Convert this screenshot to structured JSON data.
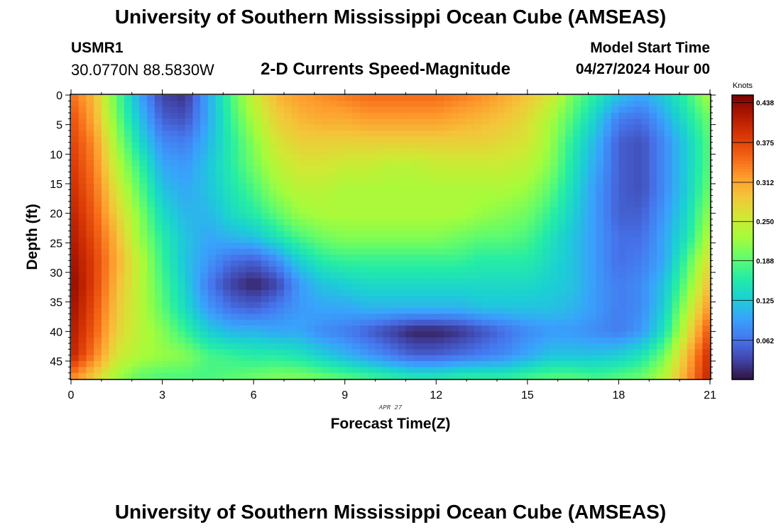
{
  "header": {
    "title": "University of Southern Mississippi Ocean Cube (AMSEAS)",
    "station": "USMR1",
    "coords": "30.0770N  88.5830W",
    "model_start_label": "Model Start Time",
    "model_start_value": "04/27/2024 Hour 00"
  },
  "footer": {
    "title": "University of Southern Mississippi Ocean Cube (AMSEAS)"
  },
  "chart_data": {
    "type": "heatmap",
    "title": "2-D Currents Speed-Magnitude",
    "xlabel": "Forecast Time(Z)",
    "ylabel": "Depth (ft)",
    "date_label": "APR 27",
    "xlim": [
      0,
      21
    ],
    "ylim": [
      0,
      48
    ],
    "xticks": [
      "0",
      "3",
      "6",
      "9",
      "12",
      "15",
      "18",
      "21"
    ],
    "yticks": [
      "0",
      "5",
      "10",
      "15",
      "20",
      "25",
      "30",
      "35",
      "40",
      "45"
    ],
    "colorbar": {
      "label": "Knots",
      "min": 0.0,
      "max": 0.45,
      "ticks": [
        "0.438",
        "0.375",
        "0.312",
        "0.250",
        "0.188",
        "0.125",
        "0.062"
      ]
    },
    "colors": [
      "#30123b",
      "#4145ab",
      "#4675ed",
      "#39a2fc",
      "#1bcfd4",
      "#24eca6",
      "#61fc6c",
      "#a4fc3b",
      "#d1e834",
      "#f3c63a",
      "#fe9b2d",
      "#f36315",
      "#d93806",
      "#b11901",
      "#7a0402"
    ],
    "time_hours": [
      0,
      0.75,
      1.5,
      2.25,
      3,
      3.75,
      4.5,
      5.25,
      6,
      6.75,
      7.5,
      8.25,
      9,
      9.75,
      10.5,
      11.25,
      12,
      12.75,
      13.5,
      14.25,
      15,
      15.75,
      16.5,
      17.25,
      18,
      18.75,
      19.5,
      20.25,
      21
    ],
    "depth_ft": [
      0,
      4,
      8,
      12,
      16,
      20,
      24,
      28,
      32,
      36,
      40,
      44,
      48
    ],
    "speed_knots": [
      [
        0.35,
        0.3,
        0.19,
        0.1,
        0.03,
        0.02,
        0.1,
        0.18,
        0.25,
        0.3,
        0.32,
        0.33,
        0.34,
        0.35,
        0.35,
        0.35,
        0.35,
        0.34,
        0.33,
        0.31,
        0.29,
        0.26,
        0.2,
        0.16,
        0.12,
        0.1,
        0.13,
        0.17,
        0.23
      ],
      [
        0.37,
        0.31,
        0.2,
        0.12,
        0.05,
        0.04,
        0.1,
        0.17,
        0.23,
        0.28,
        0.3,
        0.31,
        0.31,
        0.32,
        0.32,
        0.32,
        0.32,
        0.31,
        0.3,
        0.29,
        0.27,
        0.23,
        0.18,
        0.13,
        0.07,
        0.06,
        0.1,
        0.15,
        0.2
      ],
      [
        0.38,
        0.33,
        0.22,
        0.14,
        0.08,
        0.07,
        0.11,
        0.16,
        0.21,
        0.26,
        0.28,
        0.28,
        0.28,
        0.28,
        0.28,
        0.28,
        0.28,
        0.28,
        0.28,
        0.27,
        0.26,
        0.22,
        0.16,
        0.11,
        0.05,
        0.04,
        0.08,
        0.13,
        0.19
      ],
      [
        0.39,
        0.34,
        0.24,
        0.17,
        0.1,
        0.09,
        0.12,
        0.16,
        0.2,
        0.24,
        0.26,
        0.26,
        0.25,
        0.25,
        0.24,
        0.24,
        0.25,
        0.25,
        0.25,
        0.25,
        0.24,
        0.21,
        0.15,
        0.1,
        0.05,
        0.04,
        0.08,
        0.13,
        0.19
      ],
      [
        0.4,
        0.35,
        0.26,
        0.19,
        0.12,
        0.1,
        0.12,
        0.15,
        0.18,
        0.22,
        0.24,
        0.24,
        0.23,
        0.23,
        0.23,
        0.23,
        0.23,
        0.23,
        0.23,
        0.23,
        0.22,
        0.19,
        0.14,
        0.09,
        0.05,
        0.04,
        0.08,
        0.13,
        0.2
      ],
      [
        0.41,
        0.36,
        0.28,
        0.21,
        0.14,
        0.11,
        0.11,
        0.14,
        0.16,
        0.19,
        0.22,
        0.23,
        0.23,
        0.23,
        0.23,
        0.23,
        0.23,
        0.23,
        0.22,
        0.21,
        0.2,
        0.17,
        0.13,
        0.09,
        0.05,
        0.05,
        0.09,
        0.14,
        0.22
      ],
      [
        0.42,
        0.37,
        0.3,
        0.22,
        0.16,
        0.12,
        0.1,
        0.11,
        0.12,
        0.15,
        0.18,
        0.2,
        0.21,
        0.21,
        0.21,
        0.21,
        0.21,
        0.2,
        0.19,
        0.19,
        0.18,
        0.15,
        0.12,
        0.09,
        0.06,
        0.06,
        0.1,
        0.15,
        0.24
      ],
      [
        0.43,
        0.38,
        0.31,
        0.24,
        0.17,
        0.12,
        0.09,
        0.06,
        0.05,
        0.08,
        0.13,
        0.16,
        0.17,
        0.17,
        0.17,
        0.17,
        0.17,
        0.17,
        0.16,
        0.16,
        0.16,
        0.14,
        0.12,
        0.09,
        0.06,
        0.07,
        0.1,
        0.18,
        0.27
      ],
      [
        0.44,
        0.38,
        0.3,
        0.24,
        0.18,
        0.13,
        0.07,
        0.03,
        0.01,
        0.03,
        0.09,
        0.12,
        0.13,
        0.14,
        0.14,
        0.14,
        0.14,
        0.14,
        0.14,
        0.14,
        0.14,
        0.13,
        0.12,
        0.09,
        0.07,
        0.08,
        0.12,
        0.2,
        0.3
      ],
      [
        0.43,
        0.37,
        0.29,
        0.24,
        0.19,
        0.14,
        0.09,
        0.06,
        0.05,
        0.07,
        0.09,
        0.1,
        0.1,
        0.11,
        0.11,
        0.11,
        0.11,
        0.11,
        0.12,
        0.12,
        0.12,
        0.12,
        0.11,
        0.09,
        0.07,
        0.08,
        0.13,
        0.23,
        0.33
      ],
      [
        0.42,
        0.36,
        0.28,
        0.24,
        0.21,
        0.17,
        0.13,
        0.11,
        0.11,
        0.1,
        0.1,
        0.08,
        0.07,
        0.05,
        0.03,
        0.01,
        0.01,
        0.02,
        0.04,
        0.06,
        0.08,
        0.09,
        0.09,
        0.08,
        0.07,
        0.09,
        0.15,
        0.26,
        0.37
      ],
      [
        0.41,
        0.34,
        0.26,
        0.23,
        0.22,
        0.21,
        0.18,
        0.17,
        0.16,
        0.16,
        0.15,
        0.13,
        0.11,
        0.09,
        0.07,
        0.05,
        0.05,
        0.06,
        0.07,
        0.08,
        0.1,
        0.12,
        0.12,
        0.12,
        0.13,
        0.15,
        0.2,
        0.3,
        0.4
      ],
      [
        0.33,
        0.28,
        0.22,
        0.19,
        0.18,
        0.18,
        0.18,
        0.19,
        0.2,
        0.21,
        0.21,
        0.2,
        0.19,
        0.18,
        0.17,
        0.16,
        0.16,
        0.17,
        0.17,
        0.17,
        0.18,
        0.19,
        0.19,
        0.18,
        0.19,
        0.2,
        0.24,
        0.32,
        0.41
      ]
    ]
  }
}
